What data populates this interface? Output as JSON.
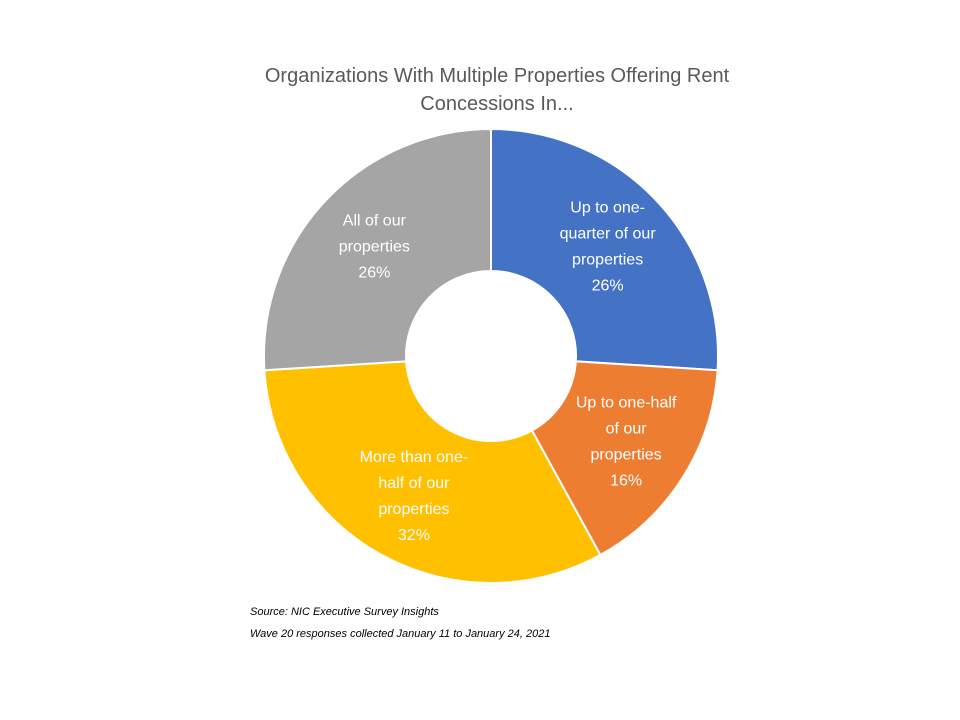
{
  "chart_data": {
    "type": "pie",
    "title_lines": [
      "Organizations With Multiple Properties Offering Rent",
      "Concessions In..."
    ],
    "slices": [
      {
        "label_lines": [
          "Up to one-",
          "quarter of our",
          "properties"
        ],
        "value": 26,
        "value_label": "26%",
        "color": "#4472C4"
      },
      {
        "label_lines": [
          "Up to one-half",
          "of our",
          "properties"
        ],
        "value": 16,
        "value_label": "16%",
        "color": "#ED7D31"
      },
      {
        "label_lines": [
          "More than one-",
          "half of our",
          "properties"
        ],
        "value": 32,
        "value_label": "32%",
        "color": "#FFC000"
      },
      {
        "label_lines": [
          "All of our",
          "properties"
        ],
        "value": 26,
        "value_label": "26%",
        "color": "#A5A5A5"
      }
    ]
  },
  "footnotes": {
    "source": "Source: NIC Executive Survey Insights",
    "wave": "Wave 20 responses collected January 11 to January 24, 2021"
  }
}
